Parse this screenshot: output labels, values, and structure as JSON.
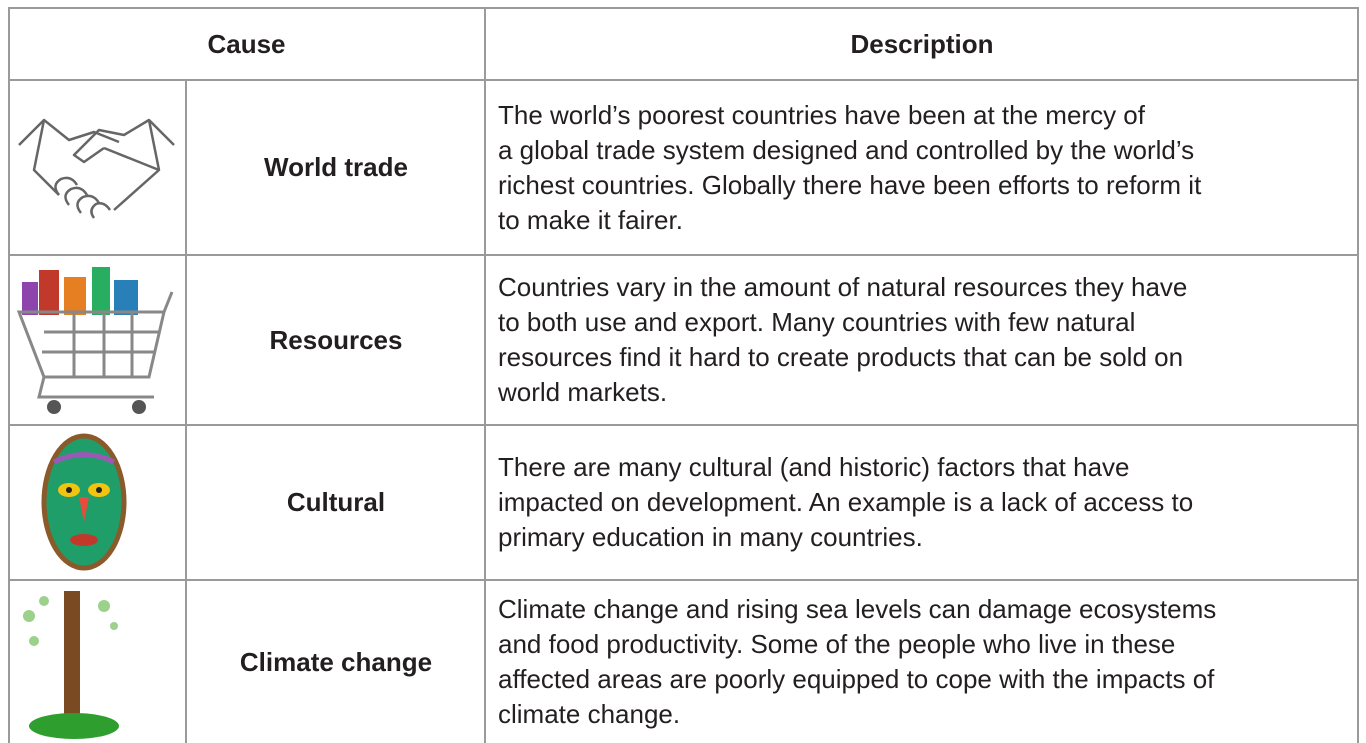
{
  "table": {
    "header": [
      "Cause",
      "Description"
    ],
    "rows": [
      {
        "cause": "World trade",
        "description": [
          "The world’s poorest countries have been at the mercy of",
          "a global trade system designed and controlled by the world’s",
          "richest countries. Globally there have been efforts to reform it",
          "to make it fairer."
        ]
      },
      {
        "cause": "Resources",
        "description": [
          "Countries vary in the amount of natural resources they have",
          "to both use and export. Many countries with few natural",
          "resources find it hard to create products that can be sold on",
          "world markets."
        ]
      },
      {
        "cause": "Cultural",
        "description": [
          "There are many cultural (and historic) factors that have",
          "impacted on development. An example is a lack of access to",
          "primary education in many countries."
        ]
      },
      {
        "cause": "Climate change",
        "description": [
          "Climate change and rising sea levels can damage ecosystems",
          "and food productivity. Some of the people who live in these",
          "affected areas are poorly equipped to cope with the impacts of",
          "climate change."
        ]
      }
    ]
  }
}
